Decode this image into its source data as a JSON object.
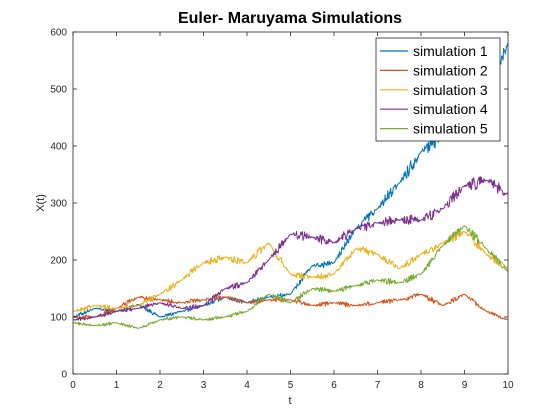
{
  "chart_data": {
    "type": "line",
    "title": "Euler- Maruyama Simulations",
    "xlabel": "t",
    "ylabel": "X(t)",
    "xlim": [
      0,
      10
    ],
    "ylim": [
      0,
      600
    ],
    "x_ticks": [
      0,
      1,
      2,
      3,
      4,
      5,
      6,
      7,
      8,
      9,
      10
    ],
    "y_ticks": [
      0,
      100,
      200,
      300,
      400,
      500,
      600
    ],
    "grid": false,
    "legend_position": "top-right",
    "x": [
      0,
      0.5,
      1,
      1.5,
      2,
      2.5,
      3,
      3.5,
      4,
      4.5,
      5,
      5.5,
      6,
      6.5,
      7,
      7.5,
      8,
      8.5,
      9,
      9.5,
      10
    ],
    "series": [
      {
        "name": "simulation 1",
        "color": "#0072BD",
        "values": [
          100,
          115,
          110,
          122,
          100,
          110,
          120,
          135,
          125,
          135,
          140,
          190,
          195,
          255,
          290,
          335,
          390,
          420,
          440,
          480,
          580
        ]
      },
      {
        "name": "simulation 2",
        "color": "#D95319",
        "values": [
          100,
          100,
          115,
          135,
          130,
          125,
          130,
          135,
          125,
          130,
          130,
          120,
          125,
          120,
          125,
          130,
          140,
          120,
          140,
          110,
          95
        ]
      },
      {
        "name": "simulation 3",
        "color": "#EDB120",
        "values": [
          110,
          120,
          115,
          120,
          140,
          165,
          195,
          205,
          195,
          230,
          175,
          170,
          175,
          220,
          210,
          185,
          210,
          230,
          250,
          210,
          185
        ]
      },
      {
        "name": "simulation 4",
        "color": "#7E2F8E",
        "values": [
          95,
          100,
          110,
          115,
          125,
          115,
          120,
          150,
          160,
          200,
          245,
          240,
          230,
          255,
          265,
          270,
          270,
          290,
          330,
          340,
          315
        ]
      },
      {
        "name": "simulation 5",
        "color": "#77AC30",
        "values": [
          90,
          85,
          90,
          80,
          95,
          100,
          95,
          100,
          110,
          140,
          125,
          150,
          145,
          155,
          165,
          160,
          175,
          225,
          260,
          220,
          180
        ]
      }
    ]
  }
}
